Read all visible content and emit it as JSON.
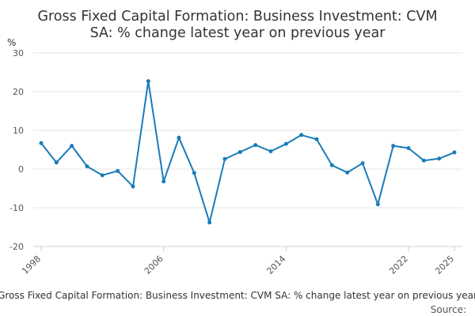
{
  "chart_data": {
    "type": "line",
    "title_lines": [
      "Gross Fixed Capital Formation: Business Investment: CVM",
      "SA: % change latest year on previous year"
    ],
    "ylabel": "%",
    "xlabel": "",
    "ylim": [
      -20,
      30
    ],
    "yticks": [
      -20,
      -10,
      0,
      10,
      20,
      30
    ],
    "xlim": [
      1998,
      2025
    ],
    "xtick_labels": [
      "1998",
      "2006",
      "2014",
      "2022",
      "2025"
    ],
    "grid": true,
    "legend": "none",
    "footer": "Gross Fixed Capital Formation: Business Investment: CVM SA: % change latest year on previous year",
    "source": "Source:",
    "series": [
      {
        "color": "#1a7bb9",
        "x": [
          1998,
          1999,
          2000,
          2001,
          2002,
          2003,
          2004,
          2005,
          2006,
          2007,
          2008,
          2009,
          2010,
          2011,
          2012,
          2013,
          2014,
          2015,
          2016,
          2017,
          2018,
          2019,
          2020,
          2021,
          2022,
          2023,
          2024,
          2025
        ],
        "values": [
          6.7,
          1.7,
          6.0,
          0.7,
          -1.6,
          -0.5,
          -4.5,
          22.7,
          -3.2,
          8.1,
          -1.0,
          -13.8,
          2.6,
          4.4,
          6.2,
          4.6,
          6.5,
          8.8,
          7.7,
          1.0,
          -0.9,
          1.5,
          -9.1,
          6.0,
          5.4,
          2.2,
          2.7,
          4.3
        ]
      }
    ]
  }
}
